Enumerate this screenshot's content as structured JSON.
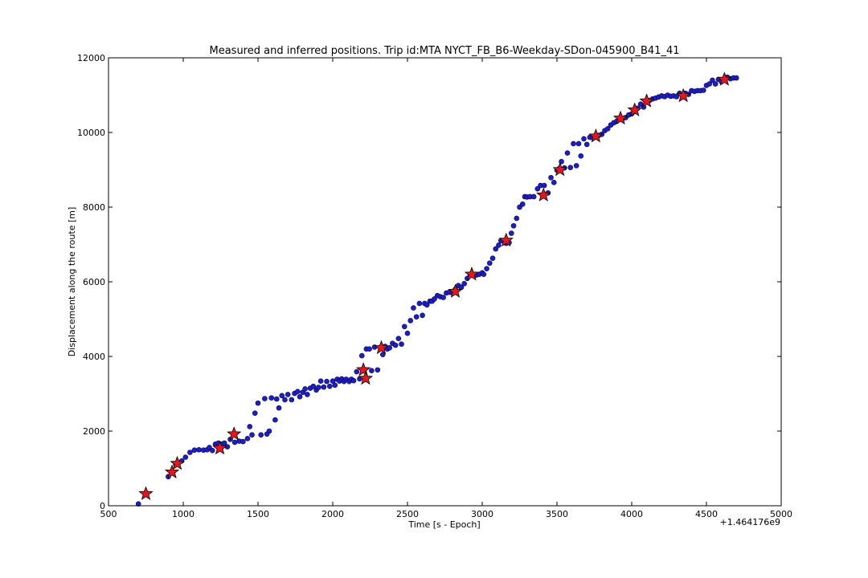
{
  "chart_data": {
    "type": "scatter",
    "title": "Measured and inferred positions. Trip id:MTA NYCT_FB_B6-Weekday-SDon-045900_B41_41",
    "xlabel": "Time [s - Epoch]",
    "ylabel": "Displacement along the route [m]",
    "x_offset_label": "+1.464176e9",
    "xlim": [
      500,
      5000
    ],
    "ylim": [
      0,
      12000
    ],
    "xticks": [
      500,
      1000,
      1500,
      2000,
      2500,
      3000,
      3500,
      4000,
      4500,
      5000
    ],
    "yticks": [
      0,
      2000,
      4000,
      6000,
      8000,
      10000,
      12000
    ],
    "grid": false,
    "colors": {
      "measured_fill": "#1f1fbf",
      "measured_edge": "#000066",
      "inferred_fill": "#e8141e",
      "inferred_edge": "#000000"
    },
    "series": [
      {
        "marker": "circle",
        "x": [
          700,
          900,
          920,
          950,
          990,
          1015,
          1045,
          1075,
          1105,
          1135,
          1160,
          1175,
          1195,
          1215,
          1235,
          1255,
          1275,
          1295,
          1315,
          1345,
          1375,
          1400,
          1430,
          1445,
          1460,
          1480,
          1500,
          1520,
          1545,
          1560,
          1575,
          1590,
          1615,
          1625,
          1640,
          1660,
          1680,
          1700,
          1725,
          1745,
          1765,
          1780,
          1800,
          1815,
          1830,
          1850,
          1870,
          1890,
          1905,
          1920,
          1940,
          1960,
          1980,
          2000,
          2015,
          2030,
          2045,
          2060,
          2075,
          2090,
          2110,
          2125,
          2140,
          2160,
          2180,
          2195,
          2210,
          2225,
          2245,
          2260,
          2280,
          2300,
          2320,
          2335,
          2350,
          2365,
          2380,
          2400,
          2420,
          2440,
          2460,
          2480,
          2500,
          2520,
          2540,
          2560,
          2580,
          2600,
          2615,
          2630,
          2650,
          2665,
          2680,
          2700,
          2720,
          2740,
          2760,
          2780,
          2800,
          2820,
          2840,
          2860,
          2880,
          2900,
          2920,
          2940,
          2960,
          2980,
          3000,
          3010,
          3030,
          3050,
          3070,
          3090,
          3110,
          3125,
          3140,
          3160,
          3180,
          3195,
          3210,
          3230,
          3250,
          3270,
          3285,
          3300,
          3320,
          3345,
          3370,
          3390,
          3415,
          3440,
          3460,
          3480,
          3500,
          3515,
          3530,
          3550,
          3570,
          3590,
          3610,
          3630,
          3645,
          3660,
          3680,
          3700,
          3720,
          3740,
          3760,
          3780,
          3800,
          3820,
          3840,
          3860,
          3880,
          3900,
          3920,
          3940,
          3960,
          3980,
          4000,
          4020,
          4040,
          4060,
          4080,
          4100,
          4120,
          4140,
          4160,
          4180,
          4200,
          4220,
          4240,
          4260,
          4280,
          4300,
          4320,
          4340,
          4360,
          4380,
          4400,
          4420,
          4440,
          4460,
          4480,
          4500,
          4520,
          4540,
          4560,
          4580,
          4600,
          4620,
          4640,
          4660,
          4680,
          4700
        ],
        "y": [
          50,
          780,
          900,
          1100,
          1200,
          1300,
          1430,
          1490,
          1500,
          1490,
          1500,
          1560,
          1480,
          1650,
          1680,
          1650,
          1680,
          1580,
          1780,
          1700,
          1730,
          1720,
          1800,
          2120,
          1900,
          2480,
          2750,
          1900,
          2870,
          1920,
          2000,
          2890,
          2300,
          2860,
          2620,
          2950,
          2840,
          2980,
          2840,
          3010,
          3060,
          2920,
          3040,
          3130,
          2980,
          3150,
          3200,
          3100,
          3170,
          3340,
          3180,
          3330,
          3200,
          3340,
          3230,
          3390,
          3340,
          3400,
          3330,
          3390,
          3330,
          3390,
          3350,
          3590,
          3400,
          4020,
          3630,
          4200,
          4200,
          3620,
          4250,
          3640,
          4230,
          4050,
          4270,
          4200,
          4230,
          4350,
          4300,
          4480,
          4330,
          4800,
          4620,
          4960,
          5300,
          5060,
          5420,
          5100,
          5420,
          5380,
          5480,
          5480,
          5540,
          5630,
          5600,
          5580,
          5700,
          5720,
          5700,
          5800,
          5900,
          5850,
          5950,
          6090,
          6170,
          6200,
          6180,
          6200,
          6240,
          6200,
          6350,
          6500,
          6630,
          6880,
          6980,
          7100,
          7090,
          7030,
          7050,
          7300,
          7500,
          7700,
          8000,
          8080,
          8280,
          8270,
          8280,
          8280,
          8490,
          8580,
          8580,
          8380,
          8790,
          8660,
          8990,
          9030,
          9220,
          9050,
          9450,
          9060,
          9700,
          9110,
          9700,
          9370,
          9830,
          9680,
          9870,
          9860,
          9880,
          9920,
          9950,
          10050,
          10100,
          10200,
          10260,
          10300,
          10350,
          10370,
          10400,
          10470,
          10500,
          10560,
          10650,
          10760,
          10680,
          10820,
          10860,
          10900,
          10920,
          10950,
          10980,
          10960,
          11000,
          10970,
          10980,
          10960,
          11050,
          11000,
          11050,
          11020,
          11120,
          11100,
          11120,
          11120,
          11130,
          11260,
          11300,
          11400,
          11300,
          11420,
          11360,
          11440,
          11480,
          11440,
          11460,
          11460
        ]
      },
      {
        "marker": "star",
        "x": [
          750,
          925,
          960,
          1245,
          1340,
          2205,
          2220,
          2325,
          2820,
          2930,
          3160,
          3410,
          3520,
          3760,
          3925,
          4020,
          4100,
          4345,
          4620
        ],
        "y": [
          320,
          900,
          1130,
          1540,
          1920,
          3640,
          3410,
          4230,
          5740,
          6200,
          7110,
          8320,
          9000,
          9900,
          10380,
          10600,
          10840,
          10980,
          11420
        ]
      }
    ]
  }
}
